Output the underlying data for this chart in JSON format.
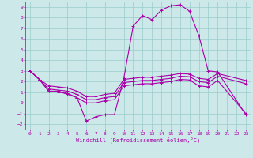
{
  "xlabel": "Windchill (Refroidissement éolien,°C)",
  "xlim": [
    -0.5,
    23.5
  ],
  "ylim": [
    -2.5,
    9.5
  ],
  "yticks": [
    -2,
    -1,
    0,
    1,
    2,
    3,
    4,
    5,
    6,
    7,
    8,
    9
  ],
  "xticks": [
    0,
    1,
    2,
    3,
    4,
    5,
    6,
    7,
    8,
    9,
    10,
    11,
    12,
    13,
    14,
    15,
    16,
    17,
    18,
    19,
    20,
    21,
    22,
    23
  ],
  "bg_color": "#cce8e8",
  "grid_color": "#99cccc",
  "line_color": "#aa00aa",
  "line_width": 0.8,
  "marker_size": 3.5,
  "line1_x": [
    0,
    1,
    2,
    3,
    4,
    5,
    6,
    7,
    8,
    9,
    10,
    11,
    12,
    13,
    14,
    15,
    16,
    17,
    18,
    19,
    20,
    23
  ],
  "line1_y": [
    3.0,
    2.2,
    1.1,
    1.1,
    0.8,
    0.5,
    -1.7,
    -1.3,
    -1.1,
    -1.1,
    2.3,
    7.2,
    8.2,
    7.8,
    8.7,
    9.1,
    9.2,
    8.6,
    6.3,
    3.0,
    2.9,
    -1.1
  ],
  "line2_x": [
    0,
    1,
    2,
    3,
    4,
    5,
    6,
    7,
    8,
    9,
    10,
    11,
    12,
    13,
    14,
    15,
    16,
    17,
    18,
    19,
    20,
    23
  ],
  "line2_y": [
    3.0,
    2.2,
    1.6,
    1.5,
    1.4,
    1.1,
    0.6,
    0.6,
    0.8,
    0.9,
    2.2,
    2.3,
    2.4,
    2.4,
    2.5,
    2.6,
    2.75,
    2.7,
    2.3,
    2.2,
    2.75,
    2.1
  ],
  "line3_x": [
    0,
    1,
    2,
    3,
    4,
    5,
    6,
    7,
    8,
    9,
    10,
    11,
    12,
    13,
    14,
    15,
    16,
    17,
    18,
    19,
    20,
    23
  ],
  "line3_y": [
    3.0,
    2.2,
    1.3,
    1.2,
    1.1,
    0.8,
    0.3,
    0.3,
    0.5,
    0.6,
    1.9,
    2.0,
    2.1,
    2.1,
    2.2,
    2.3,
    2.5,
    2.45,
    2.0,
    1.9,
    2.5,
    1.8
  ],
  "line4_x": [
    0,
    1,
    2,
    3,
    4,
    5,
    6,
    7,
    8,
    9,
    10,
    11,
    12,
    13,
    14,
    15,
    16,
    17,
    18,
    19,
    20,
    23
  ],
  "line4_y": [
    3.0,
    2.2,
    1.1,
    1.0,
    0.9,
    0.5,
    0.0,
    0.0,
    0.2,
    0.3,
    1.6,
    1.7,
    1.8,
    1.8,
    1.9,
    2.0,
    2.2,
    2.15,
    1.6,
    1.5,
    2.1,
    -1.0
  ]
}
